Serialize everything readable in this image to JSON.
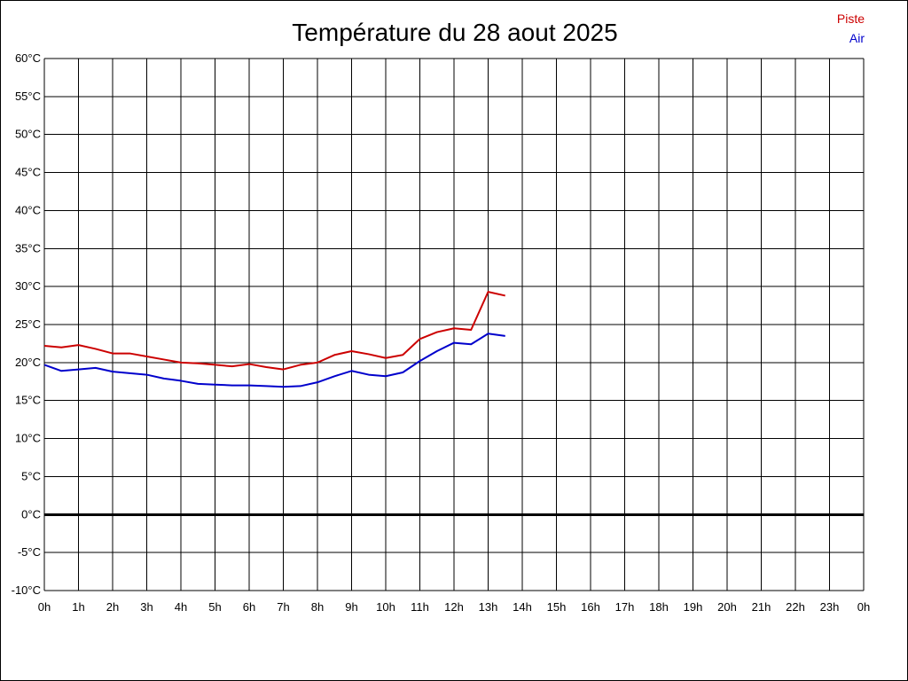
{
  "chart_data": {
    "type": "line",
    "title": "Température du 28 aout 2025",
    "xlabel": "",
    "ylabel": "",
    "x_ticks": [
      "0h",
      "1h",
      "2h",
      "3h",
      "4h",
      "5h",
      "6h",
      "7h",
      "8h",
      "9h",
      "10h",
      "11h",
      "12h",
      "13h",
      "14h",
      "15h",
      "16h",
      "17h",
      "18h",
      "19h",
      "20h",
      "21h",
      "22h",
      "23h",
      "0h"
    ],
    "y_ticks": [
      "60°C",
      "55°C",
      "50°C",
      "45°C",
      "40°C",
      "35°C",
      "30°C",
      "25°C",
      "20°C",
      "15°C",
      "10°C",
      "5°C",
      "0°C",
      "-5°C",
      "-10°C"
    ],
    "xlim": [
      0,
      24
    ],
    "ylim": [
      -10,
      60
    ],
    "grid": true,
    "zero_line": true,
    "legend_position": "top-right",
    "series": [
      {
        "name": "Piste",
        "color": "#cc0000",
        "x": [
          0,
          0.5,
          1,
          1.5,
          2,
          2.5,
          3,
          3.5,
          4,
          4.5,
          5,
          5.5,
          6,
          6.5,
          7,
          7.5,
          8,
          8.5,
          9,
          9.5,
          10,
          10.5,
          11,
          11.5,
          12,
          12.5,
          13,
          13.5
        ],
        "values": [
          22.2,
          22.0,
          22.3,
          21.8,
          21.2,
          21.2,
          20.8,
          20.4,
          20.0,
          19.9,
          19.7,
          19.5,
          19.8,
          19.4,
          19.1,
          19.7,
          20.0,
          21.0,
          21.5,
          21.1,
          20.6,
          21.0,
          23.1,
          24.0,
          24.5,
          24.3,
          29.3,
          28.8
        ]
      },
      {
        "name": "Air",
        "color": "#0000cc",
        "x": [
          0,
          0.5,
          1,
          1.5,
          2,
          2.5,
          3,
          3.5,
          4,
          4.5,
          5,
          5.5,
          6,
          6.5,
          7,
          7.5,
          8,
          8.5,
          9,
          9.5,
          10,
          10.5,
          11,
          11.5,
          12,
          12.5,
          13,
          13.5
        ],
        "values": [
          19.7,
          18.9,
          19.1,
          19.3,
          18.8,
          18.6,
          18.4,
          17.9,
          17.6,
          17.2,
          17.1,
          17.0,
          17.0,
          16.9,
          16.8,
          16.9,
          17.4,
          18.2,
          18.9,
          18.4,
          18.2,
          18.7,
          20.2,
          21.5,
          22.6,
          22.4,
          23.8,
          23.5
        ]
      }
    ]
  }
}
